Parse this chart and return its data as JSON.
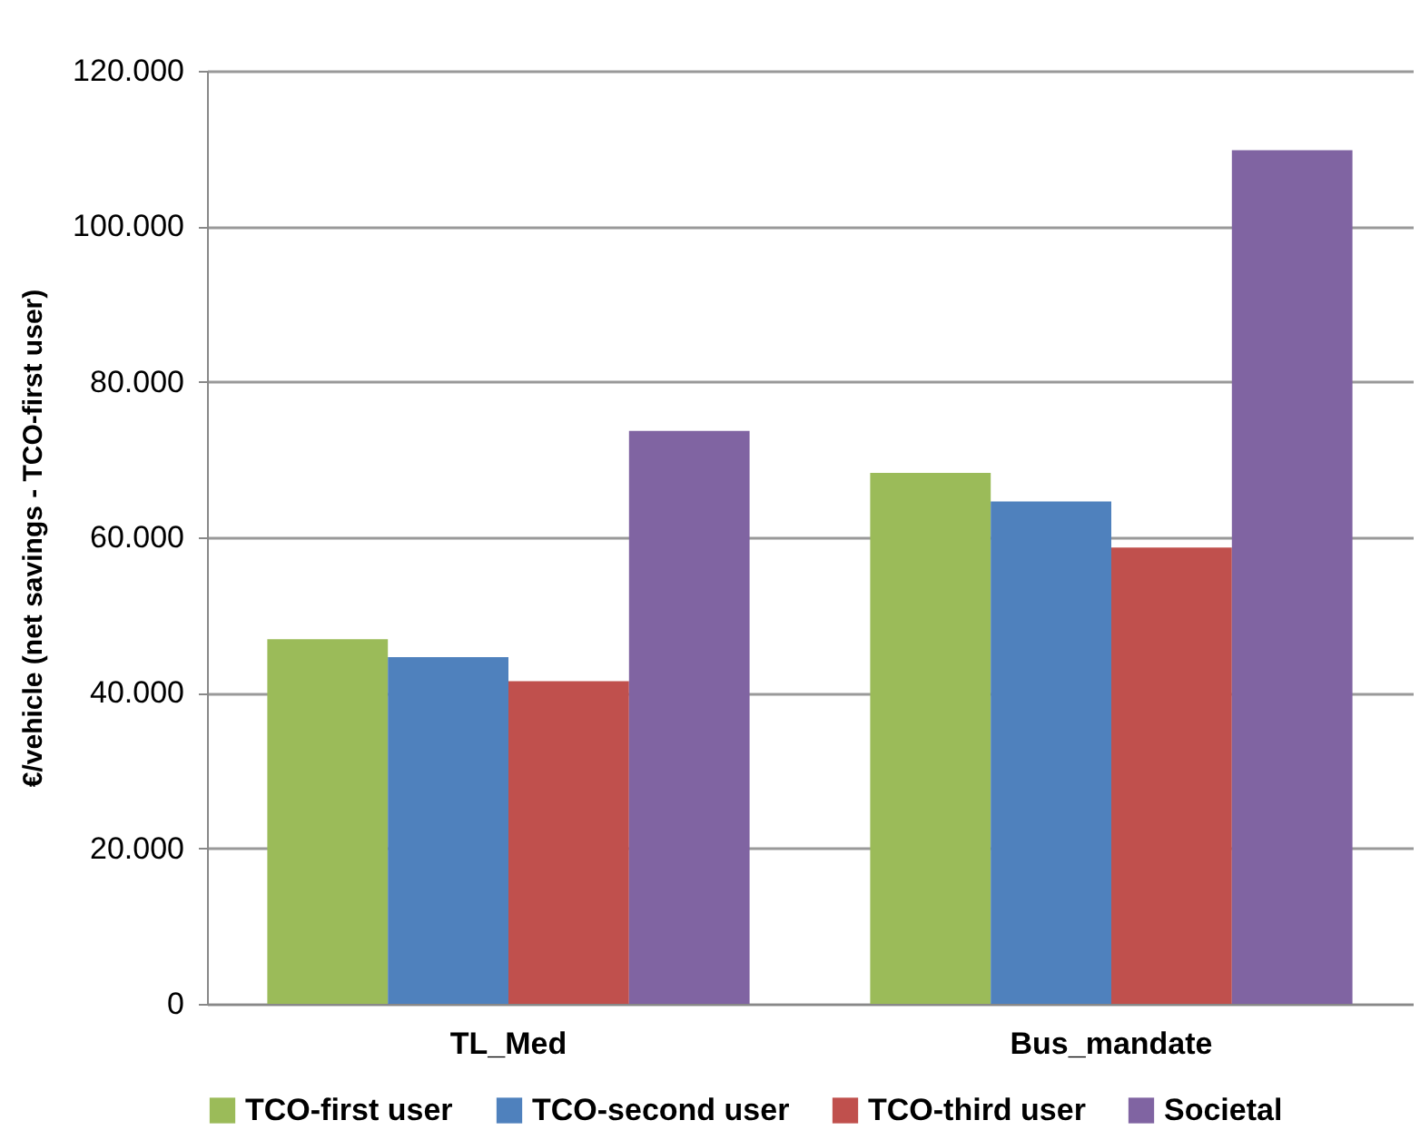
{
  "chart_data": {
    "type": "bar",
    "ylabel": "€/vehicle (net savings - TCO-first user)",
    "categories": [
      "TL_Med",
      "Bus_mandate"
    ],
    "series": [
      {
        "name": "TCO-first user",
        "color": "#9bbb59",
        "values": [
          46900,
          68300
        ]
      },
      {
        "name": "TCO-second user",
        "color": "#4f81bd",
        "values": [
          44600,
          64600
        ]
      },
      {
        "name": "TCO-third user",
        "color": "#c0504d",
        "values": [
          41500,
          58700
        ]
      },
      {
        "name": "Societal",
        "color": "#8064a2",
        "values": [
          73700,
          109800
        ]
      }
    ],
    "ylim": [
      0,
      120000
    ],
    "yticks": [
      0,
      {
        "value": 20000,
        "label": "20.000"
      },
      {
        "value": 40000,
        "label": "40.000"
      },
      {
        "value": 60000,
        "label": "60.000"
      },
      {
        "value": 80000,
        "label": "80.000"
      },
      {
        "value": 100000,
        "label": "100.000"
      },
      {
        "value": 120000,
        "label": "120.000"
      }
    ],
    "grid": "y",
    "legend": "bottom"
  }
}
